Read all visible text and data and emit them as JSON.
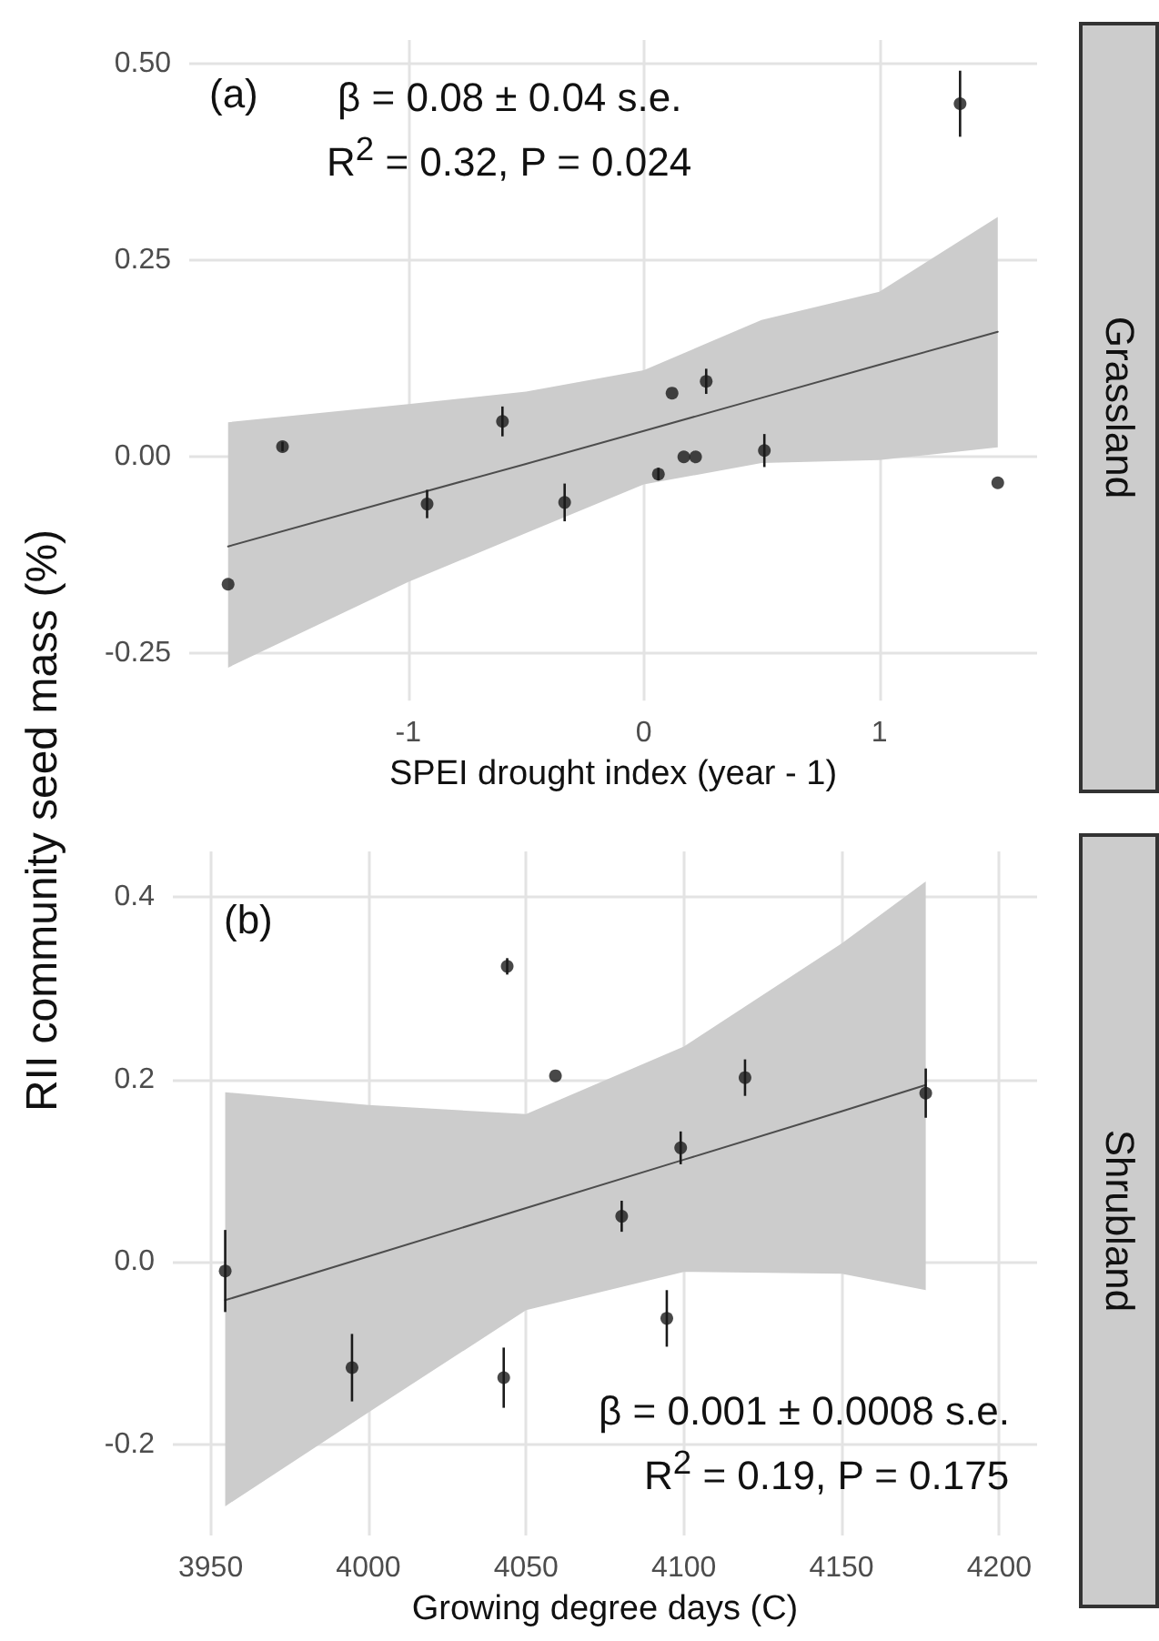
{
  "chart_data": [
    {
      "type": "scatter",
      "xlabel": "SPEI drought index (year - 1)",
      "ylabel": "RII community seed mass (%)",
      "annotations": [
        "(a)",
        "β = 0.08 ± 0.04 s.e.",
        "R$^{2}$ = 0.32, P = 0.024",
        "Grassland"
      ],
      "xlim": [
        -1.93,
        1.67
      ],
      "ylim": [
        -0.31,
        0.53
      ],
      "xticks": [
        -1,
        0,
        1
      ],
      "yticks": [
        {
          "value": -0.25,
          "label": "-0.25"
        },
        {
          "value": 0,
          "label": "0.00"
        },
        {
          "value": 0.25,
          "label": "0.25"
        },
        {
          "value": 0.5,
          "label": "0.50"
        }
      ],
      "grid": true,
      "marker": "circle",
      "series": [
        {
          "type": "scatter",
          "color": "#1a1a1a",
          "x": [
            -1.765,
            -1.534,
            -0.92,
            -0.6,
            -0.336,
            0.062,
            0.12,
            0.17,
            0.22,
            0.265,
            0.512,
            1.343,
            1.503
          ],
          "values": [
            -0.162,
            0.013,
            -0.06,
            0.045,
            -0.058,
            -0.022,
            0.081,
            0,
            0,
            0.096,
            0.008,
            0.449,
            -0.033
          ],
          "errors": [
            null,
            0.006,
            0.018,
            0.019,
            0.024,
            0.008,
            null,
            null,
            null,
            0.016,
            0.021,
            0.042,
            null
          ]
        },
        {
          "type": "line",
          "color": "#4d4d4d",
          "marker": "none",
          "x": [
            -1.765,
            -1,
            -0.5,
            0,
            0.5,
            1,
            1.503
          ],
          "values": [
            -0.114,
            -0.05,
            -0.009,
            0.033,
            0.075,
            0.117,
            0.159
          ],
          "lower": [
            -0.268,
            -0.159,
            -0.097,
            -0.035,
            -0.008,
            -0.004,
            0.012
          ],
          "upper": [
            0.044,
            0.067,
            0.083,
            0.11,
            0.174,
            0.21,
            0.305
          ]
        }
      ]
    },
    {
      "type": "scatter",
      "xlabel": "Growing degree days (C)",
      "annotations": [
        "(b)",
        "β = 0.001 ± 0.0008 s.e.",
        "R$^{2}$ = 0.19, P = 0.175",
        "Shrubland"
      ],
      "xlim": [
        3938,
        4212
      ],
      "ylim": [
        -0.3,
        0.45
      ],
      "xticks": [
        3950,
        4000,
        4050,
        4100,
        4150,
        4200
      ],
      "yticks": [
        {
          "value": -0.2,
          "label": "-0.2"
        },
        {
          "value": 0,
          "label": "0.0"
        },
        {
          "value": 0.2,
          "label": "0.2"
        },
        {
          "value": 0.4,
          "label": "0.4"
        }
      ],
      "grid": true,
      "marker": "circle",
      "series": [
        {
          "type": "scatter",
          "color": "#1a1a1a",
          "x": [
            3954.6,
            3994.8,
            4044,
            4042.9,
            4059.3,
            4080.3,
            4094.6,
            4099,
            4119.4,
            4176.7
          ],
          "values": [
            -0.01,
            -0.116,
            0.324,
            -0.127,
            0.204,
            0.05,
            -0.062,
            0.125,
            0.202,
            0.185
          ],
          "errors": [
            0.045,
            0.037,
            0.009,
            0.033,
            null,
            0.017,
            0.031,
            0.018,
            0.02,
            0.027
          ]
        },
        {
          "type": "line",
          "color": "#4d4d4d",
          "marker": "none",
          "x": [
            3954.6,
            4000,
            4050,
            4100,
            4150,
            4176.7
          ],
          "values": [
            -0.042,
            0.006,
            0.059,
            0.112,
            0.165,
            0.194
          ],
          "lower": [
            -0.268,
            -0.165,
            -0.053,
            -0.011,
            -0.013,
            -0.031
          ],
          "upper": [
            0.186,
            0.172,
            0.162,
            0.236,
            0.349,
            0.417
          ]
        }
      ]
    }
  ]
}
